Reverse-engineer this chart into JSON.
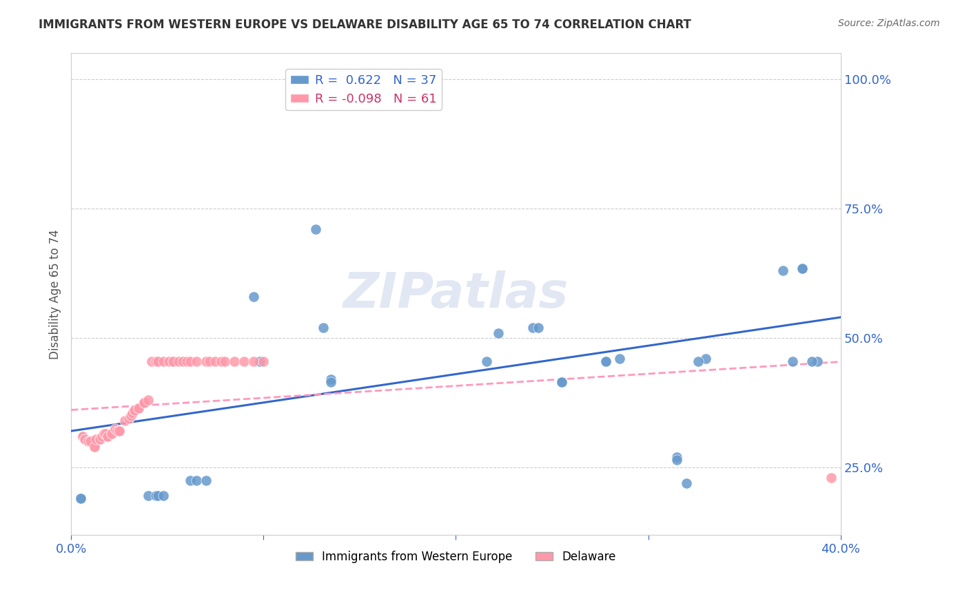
{
  "title": "IMMIGRANTS FROM WESTERN EUROPE VS DELAWARE DISABILITY AGE 65 TO 74 CORRELATION CHART",
  "source": "Source: ZipAtlas.com",
  "ylabel": "Disability Age 65 to 74",
  "right_yticks": [
    25.0,
    50.0,
    75.0,
    100.0
  ],
  "blue_R": 0.622,
  "blue_N": 37,
  "pink_R": -0.098,
  "pink_N": 61,
  "blue_color": "#6699cc",
  "pink_color": "#ff99aa",
  "blue_line_color": "#3366cc",
  "pink_line_color": "#ff99bb",
  "watermark": "ZIPatlas",
  "blue_scatter_x": [
    0.155,
    0.157,
    0.095,
    0.127,
    0.098,
    0.131,
    0.222,
    0.216,
    0.24,
    0.243,
    0.285,
    0.278,
    0.278,
    0.33,
    0.326,
    0.37,
    0.38,
    0.38,
    0.375,
    0.388,
    0.315,
    0.315,
    0.32,
    0.255,
    0.255,
    0.135,
    0.135,
    0.062,
    0.065,
    0.07,
    0.04,
    0.044,
    0.045,
    0.048,
    0.005,
    0.005,
    0.385
  ],
  "blue_scatter_y": [
    0.97,
    0.97,
    0.58,
    0.71,
    0.455,
    0.52,
    0.51,
    0.455,
    0.52,
    0.52,
    0.46,
    0.455,
    0.455,
    0.46,
    0.455,
    0.63,
    0.635,
    0.635,
    0.455,
    0.455,
    0.27,
    0.265,
    0.22,
    0.415,
    0.415,
    0.42,
    0.415,
    0.225,
    0.225,
    0.225,
    0.195,
    0.195,
    0.195,
    0.195,
    0.19,
    0.19,
    0.455
  ],
  "pink_scatter_x": [
    0.006,
    0.006,
    0.007,
    0.007,
    0.007,
    0.009,
    0.009,
    0.01,
    0.01,
    0.012,
    0.012,
    0.013,
    0.015,
    0.015,
    0.016,
    0.017,
    0.018,
    0.019,
    0.019,
    0.021,
    0.021,
    0.023,
    0.024,
    0.025,
    0.025,
    0.028,
    0.03,
    0.031,
    0.031,
    0.032,
    0.033,
    0.033,
    0.035,
    0.035,
    0.038,
    0.038,
    0.038,
    0.04,
    0.042,
    0.044,
    0.045,
    0.045,
    0.048,
    0.051,
    0.053,
    0.053,
    0.056,
    0.058,
    0.06,
    0.062,
    0.065,
    0.07,
    0.072,
    0.075,
    0.078,
    0.08,
    0.085,
    0.09,
    0.095,
    0.1,
    0.395
  ],
  "pink_scatter_y": [
    0.31,
    0.31,
    0.305,
    0.305,
    0.305,
    0.3,
    0.3,
    0.3,
    0.3,
    0.29,
    0.29,
    0.305,
    0.305,
    0.305,
    0.31,
    0.315,
    0.315,
    0.31,
    0.31,
    0.315,
    0.315,
    0.325,
    0.32,
    0.32,
    0.32,
    0.34,
    0.345,
    0.35,
    0.35,
    0.355,
    0.36,
    0.36,
    0.365,
    0.365,
    0.375,
    0.375,
    0.375,
    0.38,
    0.455,
    0.455,
    0.455,
    0.455,
    0.455,
    0.455,
    0.455,
    0.455,
    0.455,
    0.455,
    0.455,
    0.455,
    0.455,
    0.455,
    0.455,
    0.455,
    0.455,
    0.455,
    0.455,
    0.455,
    0.455,
    0.455,
    0.23
  ],
  "xlim": [
    0.0,
    0.4
  ],
  "ylim": [
    0.12,
    1.05
  ],
  "figsize": [
    14.06,
    8.92
  ],
  "dpi": 100
}
